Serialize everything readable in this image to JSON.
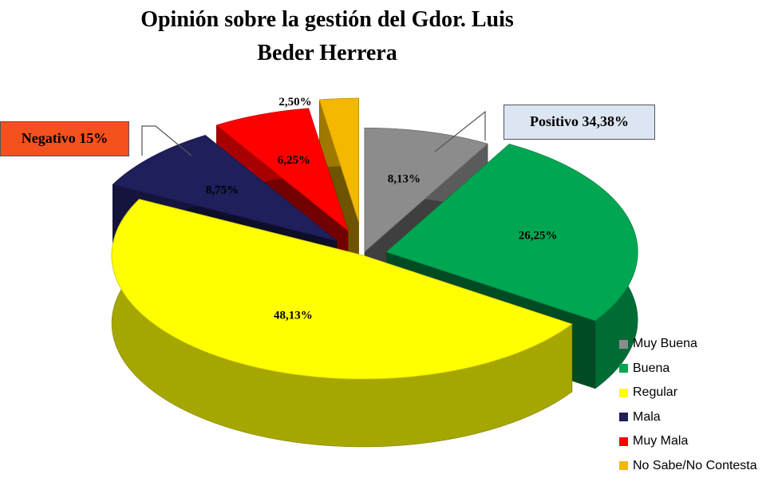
{
  "title_line1": "Opinión sobre la gestión del Gdor. Luis",
  "title_line2": "Beder Herrera",
  "callouts": {
    "negative": {
      "label": "Negativo 15%",
      "bg": "#f4511e"
    },
    "positive": {
      "label": "Positivo 34,38%",
      "bg": "#dce6f2"
    }
  },
  "chart_data": {
    "type": "pie",
    "title": "Opinión sobre la gestión del Gdor. Luis Beder Herrera",
    "legend_position": "bottom-right",
    "slices": [
      {
        "label": "Muy Buena",
        "value": 8.13,
        "display": "8,13%",
        "color": "#8c8c8c"
      },
      {
        "label": "Buena",
        "value": 26.25,
        "display": "26,25%",
        "color": "#00a651"
      },
      {
        "label": "Regular",
        "value": 48.13,
        "display": "48,13%",
        "color": "#ffff00"
      },
      {
        "label": "Mala",
        "value": 8.75,
        "display": "8,75%",
        "color": "#1f1f5c"
      },
      {
        "label": "Muy Mala",
        "value": 6.25,
        "display": "6,25%",
        "color": "#ff0000"
      },
      {
        "label": "No Sabe/No Contesta",
        "value": 2.5,
        "display": "2,50%",
        "color": "#f5b800"
      }
    ]
  }
}
